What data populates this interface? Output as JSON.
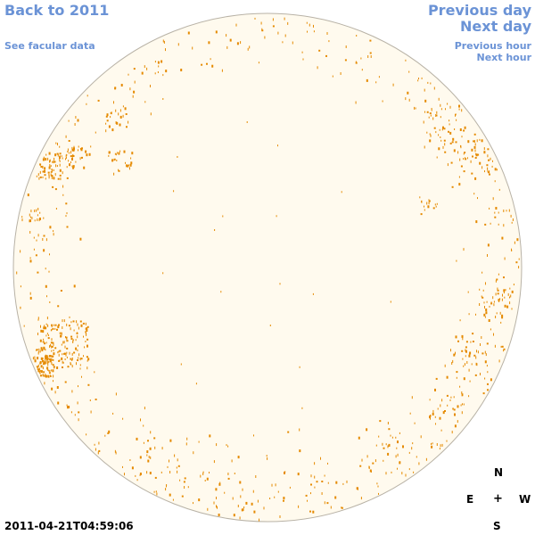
{
  "nav": {
    "back_label": "Back to 2011",
    "facular_label": "See facular data",
    "prev_day_label": "Previous day",
    "next_day_label": "Next day",
    "prev_hour_label": "Previous hour",
    "next_hour_label": "Next hour"
  },
  "compass": {
    "north": "N",
    "east": "E",
    "center": "+",
    "west": "W",
    "south": "S"
  },
  "timestamp": "2011-04-21T04:59:06",
  "colors": {
    "link": "#6b93d6",
    "disk_fill": "#fffaee",
    "disk_border": "#b8b2a6",
    "faculae": "#e58a00"
  }
}
